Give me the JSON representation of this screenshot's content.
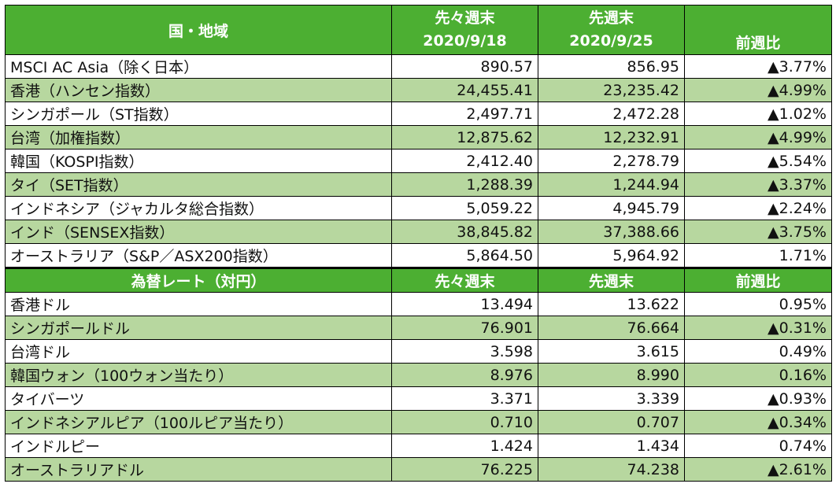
{
  "colors": {
    "header_bg": "#4caf32",
    "shaded_row": "#b7d79f",
    "up_text": "#ee1111"
  },
  "header": {
    "col0": "国・地域",
    "col1_line1": "先々週末",
    "col1_line2": "2020/9/18",
    "col2_line1": "先週末",
    "col2_line2": "2020/9/25",
    "col3": "前週比"
  },
  "indices": [
    {
      "name": "MSCI AC Asia（除く日本）",
      "prev2": "890.57",
      "prev1": "856.95",
      "change": "▲3.77%",
      "up": true,
      "shaded": false
    },
    {
      "name": "香港（ハンセン指数）",
      "prev2": "24,455.41",
      "prev1": "23,235.42",
      "change": "▲4.99%",
      "up": true,
      "shaded": true
    },
    {
      "name": "シンガポール（ST指数）",
      "prev2": "2,497.71",
      "prev1": "2,472.28",
      "change": "▲1.02%",
      "up": true,
      "shaded": false
    },
    {
      "name": "台湾（加権指数）",
      "prev2": "12,875.62",
      "prev1": "12,232.91",
      "change": "▲4.99%",
      "up": true,
      "shaded": true
    },
    {
      "name": "韓国（KOSPI指数）",
      "prev2": "2,412.40",
      "prev1": "2,278.79",
      "change": "▲5.54%",
      "up": true,
      "shaded": false
    },
    {
      "name": "タイ（SET指数）",
      "prev2": "1,288.39",
      "prev1": "1,244.94",
      "change": "▲3.37%",
      "up": true,
      "shaded": true
    },
    {
      "name": "インドネシア（ジャカルタ総合指数）",
      "prev2": "5,059.22",
      "prev1": "4,945.79",
      "change": "▲2.24%",
      "up": true,
      "shaded": false
    },
    {
      "name": "インド（SENSEX指数）",
      "prev2": "38,845.82",
      "prev1": "37,388.66",
      "change": "▲3.75%",
      "up": true,
      "shaded": true
    },
    {
      "name": "オーストラリア（S&P／ASX200指数）",
      "prev2": "5,864.50",
      "prev1": "5,964.92",
      "change": "1.71%",
      "up": false,
      "shaded": false
    }
  ],
  "fx_header": {
    "col0": "為替レート（対円）",
    "col1": "先々週末",
    "col2": "先週末",
    "col3": "前週比"
  },
  "fx": [
    {
      "name": "香港ドル",
      "prev2": "13.494",
      "prev1": "13.622",
      "change": "0.95%",
      "up": false,
      "shaded": false
    },
    {
      "name": "シンガポールドル",
      "prev2": "76.901",
      "prev1": "76.664",
      "change": "▲0.31%",
      "up": true,
      "shaded": true
    },
    {
      "name": "台湾ドル",
      "prev2": "3.598",
      "prev1": "3.615",
      "change": "0.49%",
      "up": false,
      "shaded": false
    },
    {
      "name": "韓国ウォン（100ウォン当たり）",
      "prev2": "8.976",
      "prev1": "8.990",
      "change": "0.16%",
      "up": false,
      "shaded": true
    },
    {
      "name": "タイバーツ",
      "prev2": "3.371",
      "prev1": "3.339",
      "change": "▲0.93%",
      "up": true,
      "shaded": false
    },
    {
      "name": "インドネシアルピア（100ルピア当たり）",
      "prev2": "0.710",
      "prev1": "0.707",
      "change": "▲0.34%",
      "up": true,
      "shaded": true
    },
    {
      "name": "インドルピー",
      "prev2": "1.424",
      "prev1": "1.434",
      "change": "0.74%",
      "up": false,
      "shaded": false
    },
    {
      "name": "オーストラリアドル",
      "prev2": "76.225",
      "prev1": "74.238",
      "change": "▲2.61%",
      "up": true,
      "shaded": true
    }
  ]
}
